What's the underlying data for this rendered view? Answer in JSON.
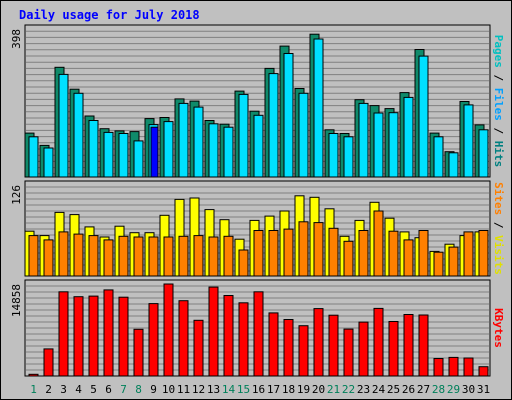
{
  "chart_data": {
    "type": "bar",
    "title": "Daily usage for July 2018",
    "categories": [
      "1",
      "2",
      "3",
      "4",
      "5",
      "6",
      "7",
      "8",
      "9",
      "10",
      "11",
      "12",
      "13",
      "14",
      "15",
      "16",
      "17",
      "18",
      "19",
      "20",
      "21",
      "22",
      "23",
      "24",
      "25",
      "26",
      "27",
      "28",
      "29",
      "30",
      "31"
    ],
    "weekend_categories": [
      "1",
      "7",
      "8",
      "14",
      "15",
      "21",
      "22",
      "28",
      "29"
    ],
    "panels": [
      {
        "name": "top",
        "ymax_label": "398",
        "ylim": [
          0,
          398
        ],
        "side_labels": [
          {
            "text": "Pages",
            "color": "#00c0c0"
          },
          {
            "text": " / ",
            "color": "#000000"
          },
          {
            "text": "Files",
            "color": "#00a0ff"
          },
          {
            "text": " / ",
            "color": "#000000"
          },
          {
            "text": "Hits",
            "color": "#008080"
          }
        ],
        "series": [
          {
            "name": "Hits",
            "color": "#0f8a6a",
            "values": [
              118,
              85,
              295,
              236,
              164,
              130,
              124,
              122,
              157,
              160,
              210,
              204,
              152,
              142,
              231,
              177,
              292,
              352,
              238,
              384,
              127,
              117,
              208,
              192,
              184,
              227,
              343,
              118,
              68,
              203,
              140
            ]
          },
          {
            "name": "Files",
            "color": "#00e0ff",
            "values": [
              108,
              78,
              276,
              225,
              152,
              120,
              117,
              97,
              141,
              149,
              198,
              188,
              143,
              134,
              222,
              166,
              278,
              332,
              225,
              371,
              117,
              108,
              198,
              172,
              173,
              214,
              325,
              108,
              65,
              194,
              127
            ]
          },
          {
            "name": "Pages",
            "color": "#0000ff",
            "values": [
              0,
              0,
              0,
              0,
              0,
              0,
              0,
              0,
              134,
              0,
              0,
              0,
              0,
              0,
              0,
              0,
              0,
              0,
              0,
              0,
              0,
              0,
              0,
              0,
              0,
              0,
              0,
              0,
              0,
              0,
              0
            ]
          }
        ]
      },
      {
        "name": "middle",
        "ymax_label": "126",
        "ylim": [
          0,
          126
        ],
        "side_labels": [
          {
            "text": "Sites",
            "color": "#ff8000"
          },
          {
            "text": " / ",
            "color": "#000000"
          },
          {
            "text": "Visits",
            "color": "#e0e000"
          }
        ],
        "series": [
          {
            "name": "Visits",
            "color": "#ffff00",
            "values": [
              62,
              56,
              88,
              85,
              68,
              54,
              69,
              60,
              60,
              84,
              106,
              108,
              92,
              78,
              51,
              77,
              83,
              90,
              111,
              109,
              93,
              55,
              77,
              102,
              80,
              61,
              53,
              34,
              44,
              56,
              61
            ]
          },
          {
            "name": "Sites",
            "color": "#ff8000",
            "values": [
              56,
              50,
              61,
              58,
              56,
              50,
              55,
              54,
              54,
              54,
              55,
              56,
              54,
              55,
              36,
              63,
              63,
              65,
              75,
              74,
              66,
              48,
              63,
              90,
              62,
              50,
              63,
              33,
              40,
              61,
              63
            ]
          }
        ]
      },
      {
        "name": "bottom",
        "ymax_label": "14858",
        "ylim": [
          0,
          14858
        ],
        "side_labels": [
          {
            "text": "KBytes",
            "color": "#ff0000"
          }
        ],
        "series": [
          {
            "name": "KBytes",
            "color": "#ff0000",
            "values": [
              280,
              4377,
              13594,
              12810,
              12898,
              13899,
              12724,
              7546,
              11700,
              14858,
              12167,
              8989,
              14362,
              13000,
              11821,
              13598,
              10191,
              9124,
              8122,
              10879,
              9821,
              7581,
              8698,
              10919,
              8800,
              9932,
              9845,
              2823,
              3000,
              2900,
              1500
            ]
          }
        ]
      }
    ]
  }
}
